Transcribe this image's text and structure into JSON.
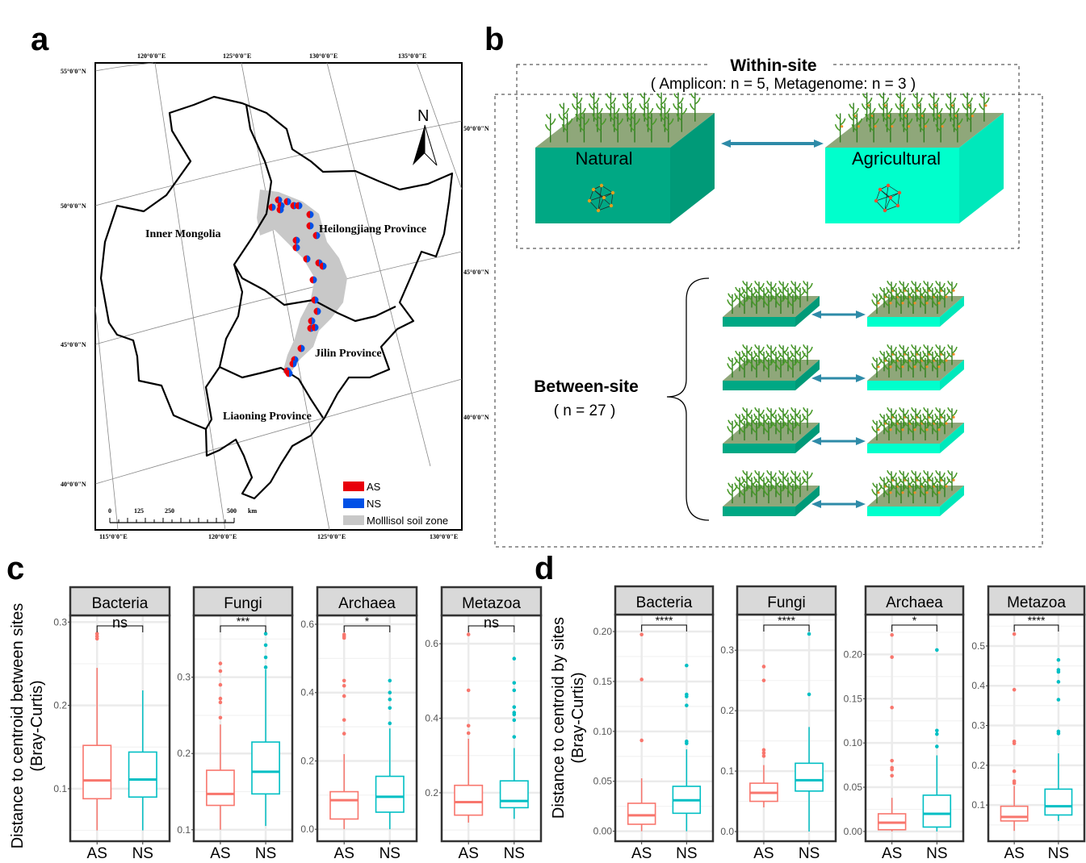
{
  "panel_labels": {
    "a": "a",
    "b": "b",
    "c": "c",
    "d": "d"
  },
  "map": {
    "lon_top": [
      "120°0'0\"E",
      "125°0'0\"E",
      "130°0'0\"E",
      "135°0'0\"E"
    ],
    "lon_bottom": [
      "115°0'0\"E",
      "120°0'0\"E",
      "125°0'0\"E",
      "130°0'0\"E"
    ],
    "lat_left": [
      "55°0'0\"N",
      "50°0'0\"N",
      "45°0'0\"N",
      "40°0'0\"N"
    ],
    "lat_right": [
      "50°0'0\"N",
      "45°0'0\"N",
      "40°0'0\"N"
    ],
    "provinces": {
      "inner_mongolia": "Inner Mongolia",
      "heilongjiang": "Heilongjiang Province",
      "jilin": "Jilin Province",
      "liaoning": "Liaoning Province"
    },
    "north_label": "N",
    "scale_bar": {
      "labels": [
        "0",
        "125",
        "250",
        "500"
      ],
      "unit": "km"
    },
    "legend": [
      {
        "label": "AS",
        "color": "#e8000b"
      },
      {
        "label": "NS",
        "color": "#0050e6"
      },
      {
        "label": "Molllisol soil zone",
        "color": "#c8c8c8"
      }
    ]
  },
  "diagram": {
    "within_title": "Within-site",
    "within_subtitle": "( Amplicon: n = 5, Metagenome: n = 3 )",
    "natural_label": "Natural",
    "agricultural_label": "Agricultural",
    "between_title": "Between-site",
    "between_subtitle": "( n = 27 )",
    "colors": {
      "natural": "#00a884",
      "agricultural": "#00ffcc",
      "soil_top": "#8fa77a",
      "arrow": "#2e8ba8"
    }
  },
  "chart_data": [
    {
      "type": "boxplot",
      "panel": "c",
      "ylabel": [
        "Distance to centroid between sites",
        "(Bray-Curtis)"
      ],
      "categories": [
        "AS",
        "NS"
      ],
      "colors": {
        "AS": "#F8766D",
        "NS": "#00BFC4"
      },
      "grid": true,
      "facets": [
        {
          "title": "Bacteria",
          "significance": "ns",
          "ylim": [
            0.037,
            0.308
          ],
          "ticks": [
            0.1,
            0.2,
            0.3
          ],
          "tick_labels": [
            "0.1",
            "0.2",
            "0.3"
          ],
          "groups": [
            {
              "name": "AS",
              "min": 0.05,
              "q1": 0.088,
              "median": 0.11,
              "q3": 0.152,
              "max": 0.245,
              "outliers": [
                0.28,
                0.283,
                0.286
              ]
            },
            {
              "name": "NS",
              "min": 0.05,
              "q1": 0.09,
              "median": 0.111,
              "q3": 0.144,
              "max": 0.218,
              "outliers": []
            }
          ]
        },
        {
          "title": "Fungi",
          "significance": "***",
          "ylim": [
            0.085,
            0.381
          ],
          "ticks": [
            0.1,
            0.2,
            0.3
          ],
          "tick_labels": [
            "0.1",
            "0.2",
            "0.3"
          ],
          "groups": [
            {
              "name": "AS",
              "min": 0.1,
              "q1": 0.132,
              "median": 0.147,
              "q3": 0.178,
              "max": 0.238,
              "outliers": [
                0.247,
                0.267,
                0.272,
                0.29,
                0.308,
                0.318
              ]
            },
            {
              "name": "NS",
              "min": 0.105,
              "q1": 0.147,
              "median": 0.176,
              "q3": 0.215,
              "max": 0.31,
              "outliers": [
                0.313,
                0.326,
                0.342,
                0.357
              ]
            }
          ]
        },
        {
          "title": "Archaea",
          "significance": "*",
          "ylim": [
            -0.035,
            0.626
          ],
          "ticks": [
            0.0,
            0.2,
            0.4,
            0.6
          ],
          "tick_labels": [
            "0.0",
            "0.2",
            "0.4",
            "0.6"
          ],
          "groups": [
            {
              "name": "AS",
              "min": 0.0,
              "q1": 0.03,
              "median": 0.085,
              "q3": 0.11,
              "max": 0.22,
              "outliers": [
                0.28,
                0.32,
                0.39,
                0.42,
                0.435,
                0.56,
                0.565,
                0.57
              ]
            },
            {
              "name": "NS",
              "min": 0.0,
              "q1": 0.05,
              "median": 0.095,
              "q3": 0.155,
              "max": 0.295,
              "outliers": [
                0.31,
                0.355,
                0.38,
                0.4,
                0.435
              ]
            }
          ]
        },
        {
          "title": "Metazoa",
          "significance": "ns",
          "ylim": [
            0.07,
            0.676
          ],
          "ticks": [
            0.2,
            0.4,
            0.6
          ],
          "tick_labels": [
            "0.2",
            "0.4",
            "0.6"
          ],
          "groups": [
            {
              "name": "AS",
              "min": 0.12,
              "q1": 0.14,
              "median": 0.175,
              "q3": 0.22,
              "max": 0.345,
              "outliers": [
                0.36,
                0.38,
                0.475,
                0.625
              ]
            },
            {
              "name": "NS",
              "min": 0.13,
              "q1": 0.16,
              "median": 0.178,
              "q3": 0.232,
              "max": 0.32,
              "outliers": [
                0.35,
                0.395,
                0.41,
                0.415,
                0.43,
                0.475,
                0.495,
                0.56
              ]
            }
          ]
        }
      ]
    },
    {
      "type": "boxplot",
      "panel": "d",
      "ylabel": [
        "Distance to centroid by sites",
        "(Bray-Curtis)"
      ],
      "categories": [
        "AS",
        "NS"
      ],
      "colors": {
        "AS": "#F8766D",
        "NS": "#00BFC4"
      },
      "grid": true,
      "facets": [
        {
          "title": "Bacteria",
          "significance": "****",
          "ylim": [
            -0.01,
            0.217
          ],
          "ticks": [
            0.0,
            0.05,
            0.1,
            0.15,
            0.2
          ],
          "tick_labels": [
            "0.00",
            "0.05",
            "0.10",
            "0.15",
            "0.20"
          ],
          "groups": [
            {
              "name": "AS",
              "min": 0.0,
              "q1": 0.007,
              "median": 0.016,
              "q3": 0.028,
              "max": 0.053,
              "outliers": [
                0.091,
                0.152,
                0.197
              ]
            },
            {
              "name": "NS",
              "min": 0.0,
              "q1": 0.018,
              "median": 0.031,
              "q3": 0.045,
              "max": 0.082,
              "outliers": [
                0.088,
                0.09,
                0.126,
                0.135,
                0.137,
                0.166
              ]
            }
          ]
        },
        {
          "title": "Fungi",
          "significance": "****",
          "ylim": [
            -0.016,
            0.359
          ],
          "ticks": [
            0.0,
            0.1,
            0.2,
            0.3
          ],
          "tick_labels": [
            "0.0",
            "0.1",
            "0.2",
            "0.3"
          ],
          "groups": [
            {
              "name": "AS",
              "min": 0.04,
              "q1": 0.05,
              "median": 0.064,
              "q3": 0.08,
              "max": 0.11,
              "outliers": [
                0.125,
                0.13,
                0.135,
                0.25,
                0.273
              ]
            },
            {
              "name": "NS",
              "min": 0.0,
              "q1": 0.067,
              "median": 0.085,
              "q3": 0.113,
              "max": 0.173,
              "outliers": [
                0.227,
                0.327
              ]
            }
          ]
        },
        {
          "title": "Archaea",
          "significance": "*",
          "ylim": [
            -0.011,
            0.245
          ],
          "ticks": [
            0.0,
            0.05,
            0.1,
            0.15,
            0.2
          ],
          "tick_labels": [
            "0.00",
            "0.05",
            "0.10",
            "0.15",
            "0.20"
          ],
          "groups": [
            {
              "name": "AS",
              "min": 0.0,
              "q1": 0.002,
              "median": 0.01,
              "q3": 0.02,
              "max": 0.038,
              "outliers": [
                0.063,
                0.07,
                0.072,
                0.08,
                0.14,
                0.197,
                0.222
              ]
            },
            {
              "name": "NS",
              "min": 0.0,
              "q1": 0.005,
              "median": 0.02,
              "q3": 0.041,
              "max": 0.086,
              "outliers": [
                0.096,
                0.11,
                0.114,
                0.205
              ]
            }
          ]
        },
        {
          "title": "Metazoa",
          "significance": "****",
          "ylim": [
            0.009,
            0.579
          ],
          "ticks": [
            0.1,
            0.2,
            0.3,
            0.4,
            0.5
          ],
          "tick_labels": [
            "0.1",
            "0.2",
            "0.3",
            "0.4",
            "0.5"
          ],
          "groups": [
            {
              "name": "AS",
              "min": 0.035,
              "q1": 0.06,
              "median": 0.07,
              "q3": 0.097,
              "max": 0.148,
              "outliers": [
                0.155,
                0.16,
                0.185,
                0.255,
                0.26,
                0.39,
                0.53
              ]
            },
            {
              "name": "NS",
              "min": 0.06,
              "q1": 0.075,
              "median": 0.097,
              "q3": 0.14,
              "max": 0.23,
              "outliers": [
                0.28,
                0.285,
                0.365,
                0.41,
                0.435,
                0.44,
                0.465
              ]
            }
          ]
        }
      ]
    }
  ]
}
